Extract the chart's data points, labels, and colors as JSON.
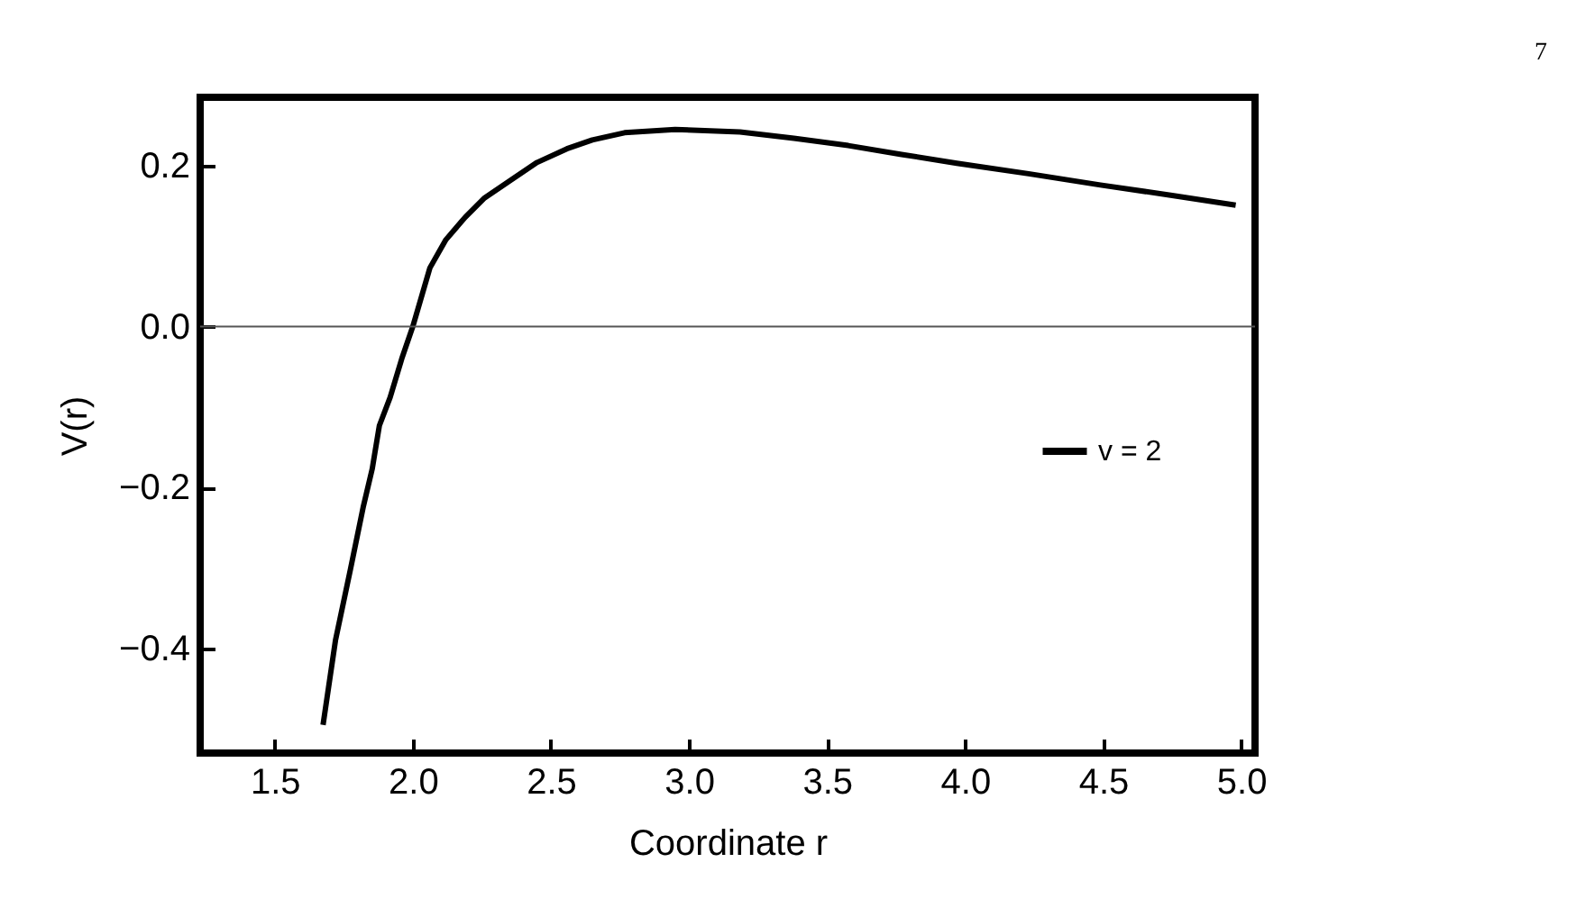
{
  "chart_data": {
    "type": "line",
    "xlabel": "Coordinate r",
    "ylabel": "V(r)",
    "xlim": [
      1.23,
      5.05
    ],
    "ylim": [
      -0.53,
      0.285
    ],
    "xticks": [
      {
        "value": 1.5,
        "label": "1.5"
      },
      {
        "value": 2,
        "label": "2.0"
      },
      {
        "value": 2.5,
        "label": "2.5"
      },
      {
        "value": 3,
        "label": "3.0"
      },
      {
        "value": 3.5,
        "label": "3.5"
      },
      {
        "value": 4,
        "label": "4.0"
      },
      {
        "value": 4.5,
        "label": "4.5"
      },
      {
        "value": 5,
        "label": "5.0"
      }
    ],
    "yticks": [
      {
        "value": -0.4,
        "label": "−0.4"
      },
      {
        "value": -0.2,
        "label": "−0.2"
      },
      {
        "value": 0,
        "label": "0.0"
      },
      {
        "value": 0.2,
        "label": "0.2"
      }
    ],
    "x": [
      1.675,
      1.72,
      1.774,
      1.82,
      1.853,
      1.879,
      1.918,
      1.96,
      2.0,
      2.062,
      2.12,
      2.19,
      2.26,
      2.35,
      2.45,
      2.558,
      2.65,
      2.767,
      2.95,
      3.185,
      3.38,
      3.577,
      3.77,
      3.97,
      4.23,
      4.49,
      4.75,
      4.98
    ],
    "series": [
      {
        "name": "v = 2",
        "color": "#000000",
        "values": [
          -0.495,
          -0.39,
          -0.302,
          -0.225,
          -0.177,
          -0.123,
          -0.088,
          -0.04,
          0.0,
          0.073,
          0.108,
          0.136,
          0.16,
          0.181,
          0.204,
          0.221,
          0.232,
          0.241,
          0.245,
          0.242,
          0.234,
          0.225,
          0.214,
          0.203,
          0.19,
          0.176,
          0.163,
          0.151
        ]
      }
    ],
    "ref_lines": [
      {
        "axis": "y",
        "value": 0,
        "color": "#555555"
      }
    ],
    "legend": "right",
    "line_style": "solid",
    "marker": "none",
    "annotations": [
      "7"
    ]
  }
}
